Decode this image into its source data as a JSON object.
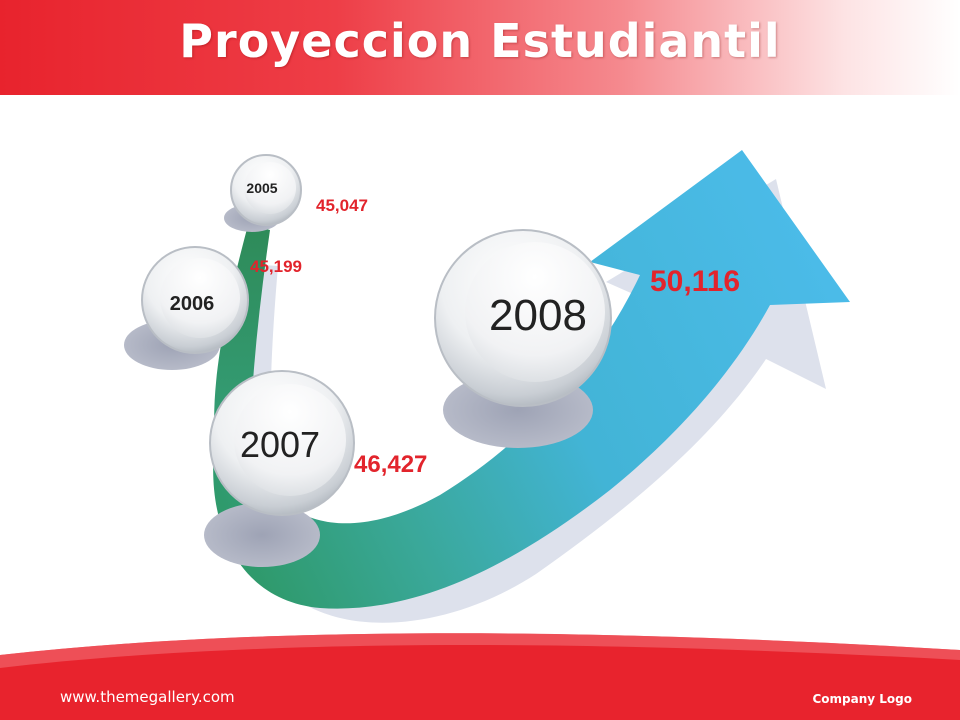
{
  "title": "Proyeccion Estudiantil",
  "footer": {
    "url": "www.themegallery.com",
    "logo_text": "Company Logo"
  },
  "colors": {
    "header_red": "#e8232d",
    "value_red": "#e2242c",
    "arrow_blue": "#45b6e3",
    "arrow_green": "#2f9a6c"
  },
  "items": [
    {
      "year": "2005",
      "value": "45,047"
    },
    {
      "year": "2006",
      "value": "45,199"
    },
    {
      "year": "2007",
      "value": "46,427"
    },
    {
      "year": "2008",
      "value": "50,116"
    }
  ]
}
